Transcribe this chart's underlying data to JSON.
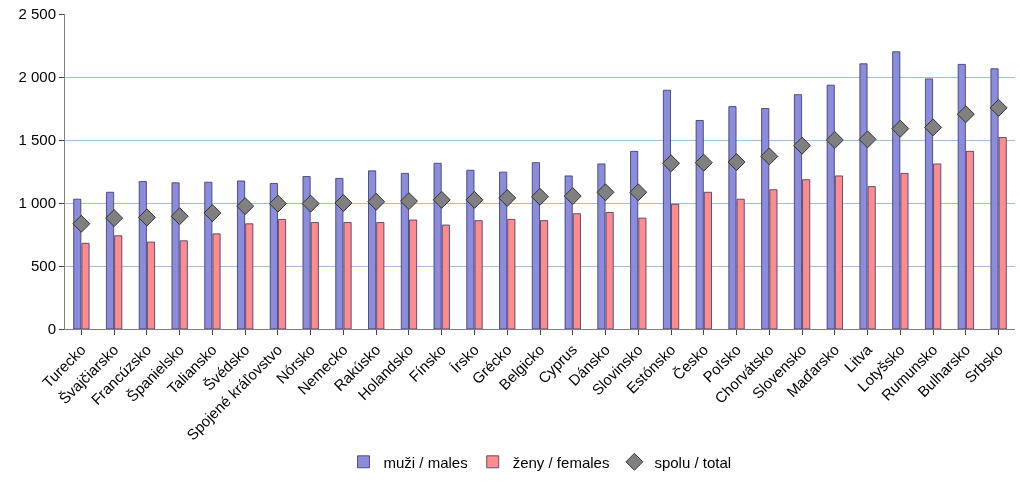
{
  "chart_data": {
    "type": "bar",
    "categories": [
      "Turecko",
      "Švajčiarsko",
      "Francúzsko",
      "Španielsko",
      "Taliansko",
      "Švédsko",
      "Spojené kráľovstvo",
      "Nórsko",
      "Nemecko",
      "Rakúsko",
      "Holandsko",
      "Fínsko",
      "Írsko",
      "Grécko",
      "Belgicko",
      "Cyprus",
      "Dánsko",
      "Slovinsko",
      "Estónsko",
      "Česko",
      "Poľsko",
      "Chorvátsko",
      "Slovensko",
      "Maďarsko",
      "Litva",
      "Lotyšsko",
      "Rumunsko",
      "Bulharsko",
      "Srbsko"
    ],
    "series": [
      {
        "name": "muži / males",
        "color": "#8c8cdc",
        "values": [
          1030,
          1085,
          1170,
          1160,
          1165,
          1175,
          1155,
          1210,
          1195,
          1255,
          1235,
          1315,
          1260,
          1245,
          1320,
          1215,
          1310,
          1410,
          1895,
          1655,
          1765,
          1750,
          1860,
          1935,
          2105,
          2200,
          1985,
          2100,
          2065
        ]
      },
      {
        "name": "ženy / females",
        "color": "#ff8c8c",
        "values": [
          680,
          740,
          690,
          700,
          755,
          835,
          870,
          845,
          845,
          845,
          865,
          825,
          860,
          870,
          860,
          915,
          925,
          880,
          990,
          1085,
          1030,
          1105,
          1185,
          1215,
          1130,
          1235,
          1310,
          1410,
          1520
        ]
      },
      {
        "name": "spolu / total",
        "type": "scatter",
        "marker": "diamond",
        "color": "#808080",
        "values": [
          835,
          880,
          885,
          895,
          920,
          975,
          995,
          995,
          1000,
          1010,
          1015,
          1025,
          1025,
          1040,
          1050,
          1055,
          1085,
          1085,
          1315,
          1320,
          1325,
          1370,
          1455,
          1500,
          1505,
          1590,
          1600,
          1705,
          1755
        ]
      }
    ],
    "ylim": [
      0,
      2500
    ],
    "yticks": [
      0,
      {
        "value": 500,
        "label": "500"
      },
      {
        "value": 1000,
        "label": "1 000"
      },
      {
        "value": 1500,
        "label": "1 500"
      },
      {
        "value": 2000,
        "label": "2 000"
      },
      {
        "value": 2500,
        "label": "2 500"
      }
    ],
    "grid": "y",
    "legend": "bottom"
  }
}
